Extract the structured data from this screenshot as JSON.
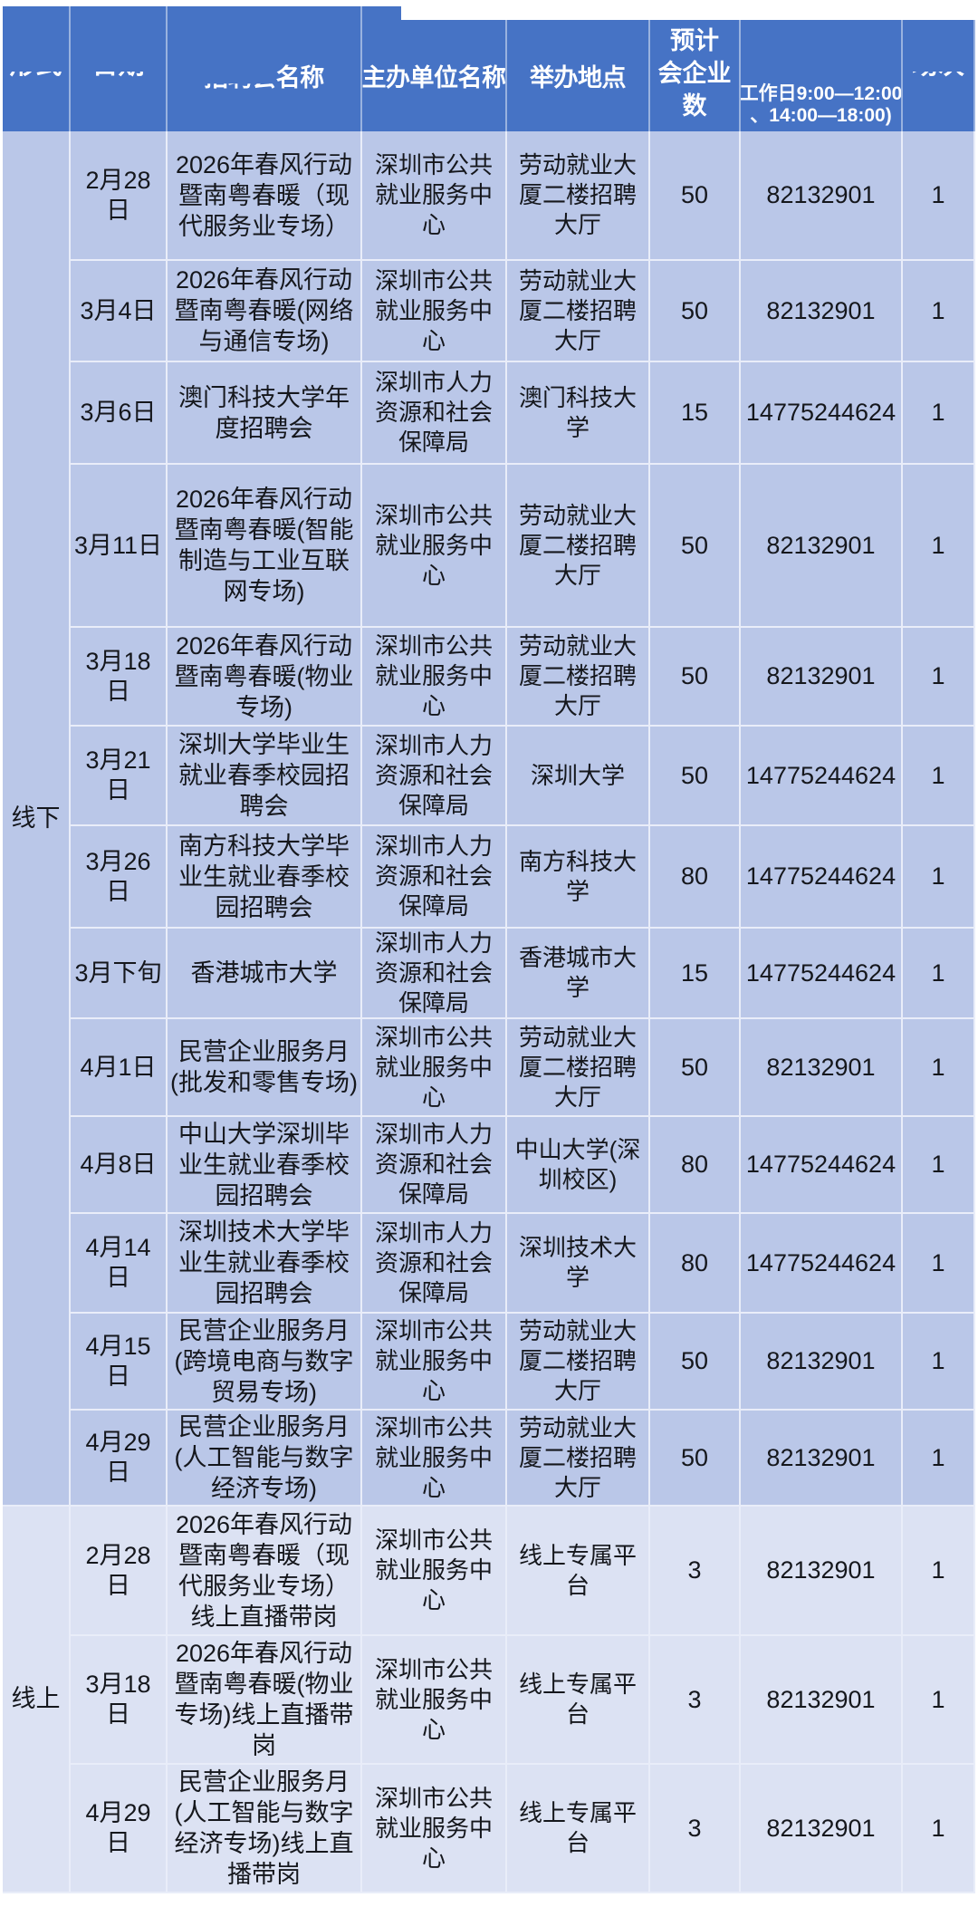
{
  "header": {
    "col_form": "形式",
    "col_date": "日期",
    "col_name_clipped": "招聘会",
    "col_name_visible": "名称",
    "col_organizer": "主办单位名称",
    "col_location": "举办地点",
    "col_expected_lines": [
      "预计",
      "会企业",
      "数"
    ],
    "col_phone_lines": [
      "工作日9:00—12:00",
      "、14:00—18:00)"
    ],
    "col_sessions": "场次"
  },
  "colors": {
    "header_bg": "#4673c5",
    "offline_row_bg": "#bac7e8",
    "online_row_bg": "#dce2f3",
    "header_text": "#ffffff",
    "cell_text": "#15171c"
  },
  "sections": [
    {
      "label": "线下",
      "rows": [
        {
          "date": "2月28日",
          "name": "2026年春风行动暨南粤春暖（现代服务业专场）",
          "organizer": "深圳市公共就业服务中心",
          "location": "劳动就业大厦二楼招聘大厅",
          "expected": "50",
          "phone": "82132901",
          "sessions": "1"
        },
        {
          "date": "3月4日",
          "name": "2026年春风行动暨南粤春暖(网络与通信专场)",
          "organizer": "深圳市公共就业服务中心",
          "location": "劳动就业大厦二楼招聘大厅",
          "expected": "50",
          "phone": "82132901",
          "sessions": "1"
        },
        {
          "date": "3月6日",
          "name": "澳门科技大学年度招聘会",
          "organizer": "深圳市人力资源和社会保障局",
          "location": "澳门科技大学",
          "expected": "15",
          "phone": "14775244624",
          "sessions": "1"
        },
        {
          "date": "3月11日",
          "name": "2026年春风行动暨南粤春暖(智能制造与工业互联网专场)",
          "organizer": "深圳市公共就业服务中心",
          "location": "劳动就业大厦二楼招聘大厅",
          "expected": "50",
          "phone": "82132901",
          "sessions": "1"
        },
        {
          "date": "3月18日",
          "name": "2026年春风行动暨南粤春暖(物业专场)",
          "organizer": "深圳市公共就业服务中心",
          "location": "劳动就业大厦二楼招聘大厅",
          "expected": "50",
          "phone": "82132901",
          "sessions": "1"
        },
        {
          "date": "3月21日",
          "name": "深圳大学毕业生就业春季校园招聘会",
          "organizer": "深圳市人力资源和社会保障局",
          "location": "深圳大学",
          "expected": "50",
          "phone": "14775244624",
          "sessions": "1"
        },
        {
          "date": "3月26日",
          "name": "南方科技大学毕业生就业春季校园招聘会",
          "organizer": "深圳市人力资源和社会保障局",
          "location": "南方科技大学",
          "expected": "80",
          "phone": "14775244624",
          "sessions": "1"
        },
        {
          "date": "3月下旬",
          "name": "香港城市大学",
          "organizer": "深圳市人力资源和社会保障局",
          "location": "香港城市大学",
          "expected": "15",
          "phone": "14775244624",
          "sessions": "1"
        },
        {
          "date": "4月1日",
          "name": "民营企业服务月(批发和零售专场)",
          "organizer": "深圳市公共就业服务中心",
          "location": "劳动就业大厦二楼招聘大厅",
          "expected": "50",
          "phone": "82132901",
          "sessions": "1"
        },
        {
          "date": "4月8日",
          "name": "中山大学深圳毕业生就业春季校园招聘会",
          "organizer": "深圳市人力资源和社会保障局",
          "location": "中山大学(深圳校区)",
          "expected": "80",
          "phone": "14775244624",
          "sessions": "1"
        },
        {
          "date": "4月14日",
          "name": "深圳技术大学毕业生就业春季校园招聘会",
          "organizer": "深圳市人力资源和社会保障局",
          "location": "深圳技术大学",
          "expected": "80",
          "phone": "14775244624",
          "sessions": "1"
        },
        {
          "date": "4月15日",
          "name": "民营企业服务月(跨境电商与数字贸易专场)",
          "organizer": "深圳市公共就业服务中心",
          "location": "劳动就业大厦二楼招聘大厅",
          "expected": "50",
          "phone": "82132901",
          "sessions": "1"
        },
        {
          "date": "4月29日",
          "name": "民营企业服务月(人工智能与数字经济专场)",
          "organizer": "深圳市公共就业服务中心",
          "location": "劳动就业大厦二楼招聘大厅",
          "expected": "50",
          "phone": "82132901",
          "sessions": "1"
        }
      ]
    },
    {
      "label": "线上",
      "rows": [
        {
          "date": "2月28日",
          "name": "2026年春风行动暨南粤春暖（现代服务业专场）线上直播带岗",
          "organizer": "深圳市公共就业服务中心",
          "location": "线上专属平台",
          "expected": "3",
          "phone": "82132901",
          "sessions": "1"
        },
        {
          "date": "3月18日",
          "name": "2026年春风行动暨南粤春暖(物业专场)线上直播带岗",
          "organizer": "深圳市公共就业服务中心",
          "location": "线上专属平台",
          "expected": "3",
          "phone": "82132901",
          "sessions": "1"
        },
        {
          "date": "4月29日",
          "name": "民营企业服务月(人工智能与数字经济专场)线上直播带岗",
          "organizer": "深圳市公共就业服务中心",
          "location": "线上专属平台",
          "expected": "3",
          "phone": "82132901",
          "sessions": "1"
        }
      ]
    }
  ]
}
